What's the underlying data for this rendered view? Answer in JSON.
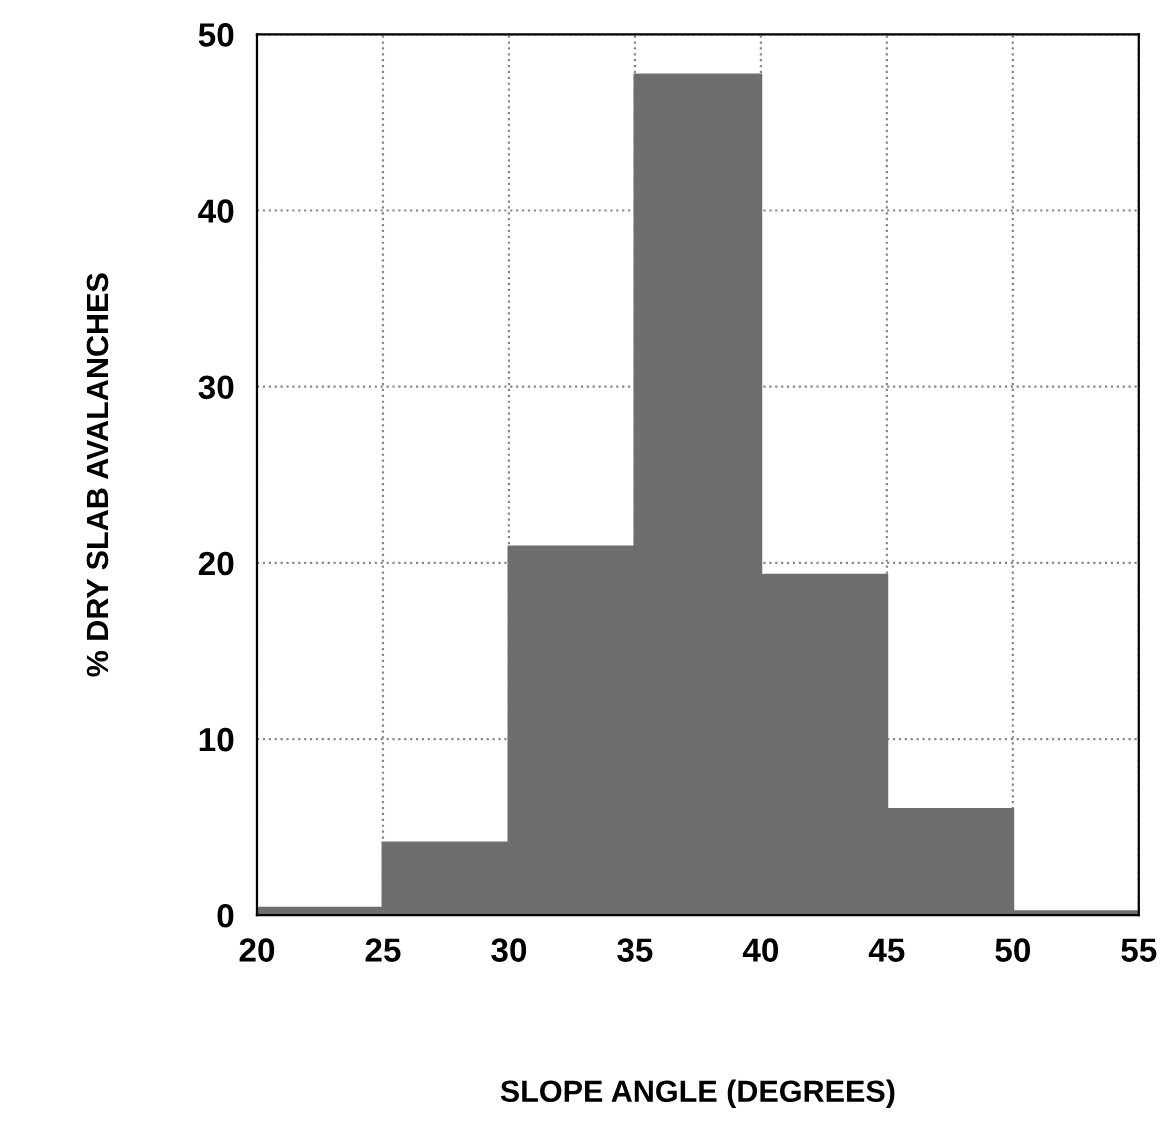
{
  "chart_data": {
    "type": "histogram",
    "xlabel": "SLOPE ANGLE (DEGREES)",
    "ylabel": "% DRY SLAB AVALANCHES",
    "bins": [
      20,
      25,
      30,
      35,
      40,
      45,
      50,
      55
    ],
    "values": [
      0.4,
      4.1,
      20.9,
      47.7,
      19.3,
      6.0,
      0.2
    ],
    "color": "#6e6e6e",
    "xlim": [
      20,
      55
    ],
    "ylim": [
      0,
      50
    ],
    "xticks": [
      20,
      25,
      30,
      35,
      40,
      45,
      50,
      55
    ],
    "yticks": [
      0,
      10,
      20,
      30,
      40,
      50
    ],
    "grid": true
  }
}
